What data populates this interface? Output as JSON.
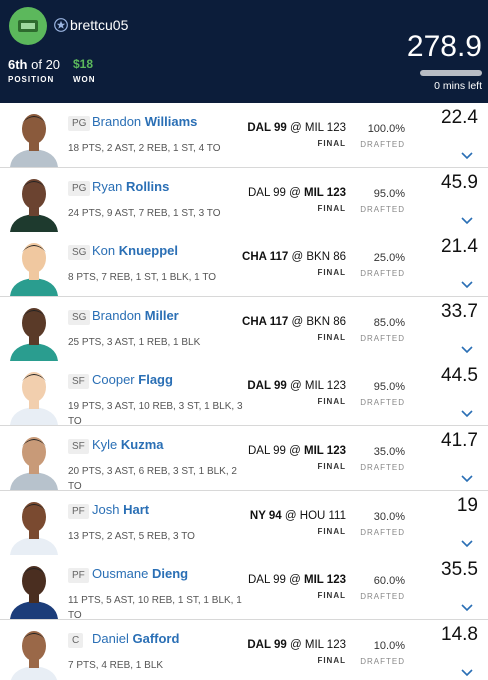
{
  "header": {
    "username": "brettcu05",
    "position_rank": "6th",
    "position_total": "of 20",
    "position_label": "POSITION",
    "winnings": "$18",
    "winnings_label": "WON",
    "score": "278.9",
    "time_left": "0 mins left"
  },
  "players": [
    {
      "pos": "PG",
      "first": "Brandon",
      "last": "Williams",
      "stats": "18 PTS, 2 AST, 2 REB, 1 ST, 4 TO",
      "away": "DAL 99",
      "at": "@",
      "home": "MIL 123",
      "team_side": "away",
      "status": "FINAL",
      "drafted_pct": "100.0%",
      "drafted_label": "DRAFTED",
      "points": "22.4"
    },
    {
      "pos": "PG",
      "first": "Ryan",
      "last": "Rollins",
      "stats": "24 PTS, 9 AST, 7 REB, 1 ST, 3 TO",
      "away": "DAL 99",
      "at": "@",
      "home": "MIL 123",
      "team_side": "home",
      "status": "FINAL",
      "drafted_pct": "95.0%",
      "drafted_label": "DRAFTED",
      "points": "45.9"
    },
    {
      "pos": "SG",
      "first": "Kon",
      "last": "Knueppel",
      "stats": "8 PTS, 7 REB, 1 ST, 1 BLK, 1 TO",
      "away": "CHA 117",
      "at": "@",
      "home": "BKN 86",
      "team_side": "away",
      "status": "FINAL",
      "drafted_pct": "25.0%",
      "drafted_label": "DRAFTED",
      "points": "21.4"
    },
    {
      "pos": "SG",
      "first": "Brandon",
      "last": "Miller",
      "stats": "25 PTS, 3 AST, 1 REB, 1 BLK",
      "away": "CHA 117",
      "at": "@",
      "home": "BKN 86",
      "team_side": "away",
      "status": "FINAL",
      "drafted_pct": "85.0%",
      "drafted_label": "DRAFTED",
      "points": "33.7"
    },
    {
      "pos": "SF",
      "first": "Cooper",
      "last": "Flagg",
      "stats": "19 PTS, 3 AST, 10 REB, 3 ST, 1 BLK, 3 TO",
      "away": "DAL 99",
      "at": "@",
      "home": "MIL 123",
      "team_side": "away",
      "status": "FINAL",
      "drafted_pct": "95.0%",
      "drafted_label": "DRAFTED",
      "points": "44.5"
    },
    {
      "pos": "SF",
      "first": "Kyle",
      "last": "Kuzma",
      "stats": "20 PTS, 3 AST, 6 REB, 3 ST, 1 BLK, 2 TO",
      "away": "DAL 99",
      "at": "@",
      "home": "MIL 123",
      "team_side": "home",
      "status": "FINAL",
      "drafted_pct": "35.0%",
      "drafted_label": "DRAFTED",
      "points": "41.7"
    },
    {
      "pos": "PF",
      "first": "Josh",
      "last": "Hart",
      "stats": "13 PTS, 2 AST, 5 REB, 3 TO",
      "away": "NY 94",
      "at": "@",
      "home": "HOU 111",
      "team_side": "away",
      "status": "FINAL",
      "drafted_pct": "30.0%",
      "drafted_label": "DRAFTED",
      "points": "19"
    },
    {
      "pos": "PF",
      "first": "Ousmane",
      "last": "Dieng",
      "stats": "11 PTS, 5 AST, 10 REB, 1 ST, 1 BLK, 1 TO",
      "away": "DAL 99",
      "at": "@",
      "home": "MIL 123",
      "team_side": "home",
      "status": "FINAL",
      "drafted_pct": "60.0%",
      "drafted_label": "DRAFTED",
      "points": "35.5"
    },
    {
      "pos": "C",
      "first": "Daniel",
      "last": "Gafford",
      "stats": "7 PTS, 4 REB, 1 BLK",
      "away": "DAL 99",
      "at": "@",
      "home": "MIL 123",
      "team_side": "away",
      "status": "FINAL",
      "drafted_pct": "10.0%",
      "drafted_label": "DRAFTED",
      "points": "14.8"
    }
  ]
}
